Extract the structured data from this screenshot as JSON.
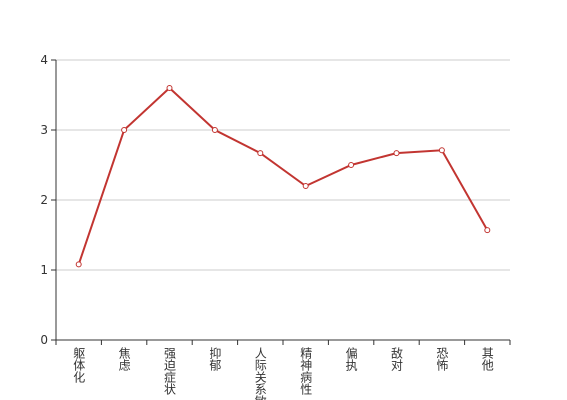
{
  "chart_data": {
    "type": "line",
    "categories": [
      "躯体化",
      "焦虑",
      "强迫症状",
      "抑郁",
      "人际关系敏感",
      "精神病性",
      "偏执",
      "敌对",
      "恐怖",
      "其他"
    ],
    "series": [
      {
        "color": "#c23531",
        "values": [
          1.08,
          3.0,
          3.6,
          3.0,
          2.67,
          2.2,
          2.5,
          2.67,
          2.71,
          1.57
        ]
      }
    ],
    "ylim": [
      0,
      4
    ],
    "yticks": [
      0,
      1,
      2,
      3,
      4
    ],
    "grid": true
  }
}
